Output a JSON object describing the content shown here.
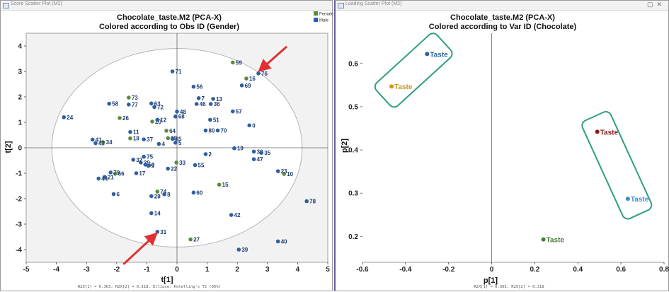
{
  "colors": {
    "female": "#5a8a3a",
    "male": "#2e5fa3",
    "arrow": "#e03030",
    "box": "#2f9e82"
  },
  "left_window": {
    "title": "Score Scatter Plot (M2)"
  },
  "right_window": {
    "title": "Loading Scatter Plot (M2)"
  },
  "chart_data": [
    {
      "type": "scatter",
      "title": "Chocolate_taste.M2 (PCA-X)",
      "subtitle": "Colored according to Obs ID (Gender)",
      "xlabel": "t[1]",
      "ylabel": "t[2]",
      "xlim": [
        -5,
        5
      ],
      "ylim": [
        -4.5,
        4.5
      ],
      "xticks": [
        -5,
        -4,
        -3,
        -2,
        -1,
        0,
        1,
        2,
        3,
        4,
        5
      ],
      "yticks": [
        -4,
        -3,
        -2,
        -1,
        0,
        1,
        2,
        3,
        4
      ],
      "grid": false,
      "legend": {
        "position": "top-right",
        "entries": [
          {
            "name": "Female",
            "color": "#5a8a3a"
          },
          {
            "name": "Male",
            "color": "#2e5fa3"
          }
        ]
      },
      "ellipse": {
        "rx": 4.15,
        "ry": 3.9
      },
      "footer": "R2X[1] = 0.363, R2X[2] = 0.318, Ellipse: Hotelling's T2 (95%)",
      "series": [
        {
          "name": "Female",
          "points": [
            {
              "label": "59",
              "x": 1.85,
              "y": 3.35
            },
            {
              "label": "16",
              "x": 2.3,
              "y": 2.72
            },
            {
              "label": "73",
              "x": -1.6,
              "y": 1.97
            },
            {
              "label": "26",
              "x": -1.9,
              "y": 1.17
            },
            {
              "label": "20",
              "x": -0.82,
              "y": 1.03
            },
            {
              "label": "64",
              "x": -0.35,
              "y": 0.67
            },
            {
              "label": "34",
              "x": -2.45,
              "y": 0.22
            },
            {
              "label": "18",
              "x": -1.55,
              "y": 0.37
            },
            {
              "label": "25",
              "x": -0.3,
              "y": 0.38
            },
            {
              "label": "33",
              "x": -0.02,
              "y": -0.58
            },
            {
              "label": "66",
              "x": -2.05,
              "y": -1.02
            },
            {
              "label": "15",
              "x": 1.4,
              "y": -1.45
            },
            {
              "label": "74",
              "x": -0.65,
              "y": -1.72
            },
            {
              "label": "27",
              "x": 0.45,
              "y": -3.6
            },
            {
              "label": "10",
              "x": 3.55,
              "y": -1.03
            }
          ]
        },
        {
          "name": "Male",
          "points": [
            {
              "label": "76",
              "x": 2.7,
              "y": 2.92
            },
            {
              "label": "71",
              "x": -0.15,
              "y": 3.0
            },
            {
              "label": "69",
              "x": 2.15,
              "y": 2.45
            },
            {
              "label": "56",
              "x": 0.55,
              "y": 2.4
            },
            {
              "label": "58",
              "x": -2.25,
              "y": 1.73
            },
            {
              "label": "77",
              "x": -1.6,
              "y": 1.7
            },
            {
              "label": "63",
              "x": -0.85,
              "y": 1.74
            },
            {
              "label": "72",
              "x": -0.75,
              "y": 1.6
            },
            {
              "label": "7",
              "x": 0.72,
              "y": 1.95
            },
            {
              "label": "46",
              "x": 0.65,
              "y": 1.72
            },
            {
              "label": "13",
              "x": 1.2,
              "y": 1.92
            },
            {
              "label": "36",
              "x": 1.12,
              "y": 1.72
            },
            {
              "label": "24",
              "x": -3.75,
              "y": 1.2
            },
            {
              "label": "48",
              "x": 0.0,
              "y": 1.42
            },
            {
              "label": "68",
              "x": -0.05,
              "y": 1.23
            },
            {
              "label": "12",
              "x": -0.65,
              "y": 1.1
            },
            {
              "label": "57",
              "x": 1.85,
              "y": 1.43
            },
            {
              "label": "51",
              "x": 1.1,
              "y": 1.1
            },
            {
              "label": "41",
              "x": -2.8,
              "y": 0.32
            },
            {
              "label": "11",
              "x": -1.55,
              "y": 0.62
            },
            {
              "label": "0",
              "x": 2.4,
              "y": 0.88
            },
            {
              "label": "80",
              "x": 0.95,
              "y": 0.68
            },
            {
              "label": "70",
              "x": 1.35,
              "y": 0.68
            },
            {
              "label": "43",
              "x": -2.7,
              "y": 0.18
            },
            {
              "label": "37",
              "x": -1.1,
              "y": 0.33
            },
            {
              "label": "5",
              "x": -0.05,
              "y": 0.2
            },
            {
              "label": "4",
              "x": -0.6,
              "y": 0.15
            },
            {
              "label": "65",
              "x": -0.15,
              "y": 0.35
            },
            {
              "label": "19",
              "x": 1.9,
              "y": -0.02
            },
            {
              "label": "30",
              "x": 2.55,
              "y": -0.15
            },
            {
              "label": "35",
              "x": 2.8,
              "y": -0.2
            },
            {
              "label": "47",
              "x": 2.55,
              "y": -0.45
            },
            {
              "label": "2",
              "x": 0.95,
              "y": -0.25
            },
            {
              "label": "32",
              "x": -1.45,
              "y": -0.47
            },
            {
              "label": "75",
              "x": -1.1,
              "y": -0.35
            },
            {
              "label": "39",
              "x": -1.2,
              "y": -0.58
            },
            {
              "label": "50",
              "x": -1.05,
              "y": -0.66
            },
            {
              "label": "9",
              "x": -0.95,
              "y": -0.71
            },
            {
              "label": "22",
              "x": -0.3,
              "y": -0.82
            },
            {
              "label": "55",
              "x": 0.6,
              "y": -0.68
            },
            {
              "label": "79",
              "x": -2.2,
              "y": -0.97
            },
            {
              "label": "21",
              "x": -2.4,
              "y": -1.15
            },
            {
              "label": "17",
              "x": -1.35,
              "y": -1.0
            },
            {
              "label": "44",
              "x": -2.6,
              "y": -1.21
            },
            {
              "label": "23",
              "x": 3.35,
              "y": -0.92
            },
            {
              "label": "6",
              "x": -2.1,
              "y": -1.82
            },
            {
              "label": "8",
              "x": -0.42,
              "y": -1.83
            },
            {
              "label": "28",
              "x": -0.85,
              "y": -1.9
            },
            {
              "label": "60",
              "x": 0.55,
              "y": -1.76
            },
            {
              "label": "78",
              "x": 4.3,
              "y": -2.1
            },
            {
              "label": "14",
              "x": -0.85,
              "y": -2.57
            },
            {
              "label": "42",
              "x": 1.8,
              "y": -2.64
            },
            {
              "label": "31",
              "x": -0.65,
              "y": -3.3
            },
            {
              "label": "40",
              "x": 3.35,
              "y": -3.68
            },
            {
              "label": "39",
              "x": 2.05,
              "y": -4.0
            }
          ]
        }
      ],
      "annotations": [
        {
          "type": "arrow",
          "points_to": "76"
        },
        {
          "type": "arrow",
          "points_to": "31"
        }
      ]
    },
    {
      "type": "scatter",
      "title": "Chocolate_taste.M2 (PCA-X)",
      "subtitle": "Colored according to Var ID (Chocolate)",
      "xlabel": "p[1]",
      "ylabel": "p[2]",
      "xlim": [
        -0.6,
        0.8
      ],
      "ylim": [
        0.14,
        0.67
      ],
      "xticks": [
        -0.6,
        -0.4,
        -0.2,
        0,
        0.2,
        0.4,
        0.6,
        0.8
      ],
      "yticks": [
        0.2,
        0.3,
        0.4,
        0.5,
        0.6
      ],
      "grid": false,
      "footer": "R2X[1] = 0.363, R2X[2] = 0.318",
      "points": [
        {
          "label": "Taste",
          "x": -0.3,
          "y": 0.622,
          "color": "#2e5fa3"
        },
        {
          "label": "Taste",
          "x": -0.465,
          "y": 0.547,
          "color": "#c89a1a"
        },
        {
          "label": "Taste",
          "x": 0.49,
          "y": 0.442,
          "color": "#8b1a1a"
        },
        {
          "label": "Taste",
          "x": 0.632,
          "y": 0.287,
          "color": "#3a8fd0"
        },
        {
          "label": "Taste",
          "x": 0.24,
          "y": 0.193,
          "color": "#4a7a3a"
        }
      ],
      "highlight_boxes": [
        {
          "groups": [
            "Taste (blue)",
            "Taste (yellow)"
          ]
        },
        {
          "groups": [
            "Taste (red)",
            "Taste (light blue)"
          ]
        }
      ]
    }
  ]
}
